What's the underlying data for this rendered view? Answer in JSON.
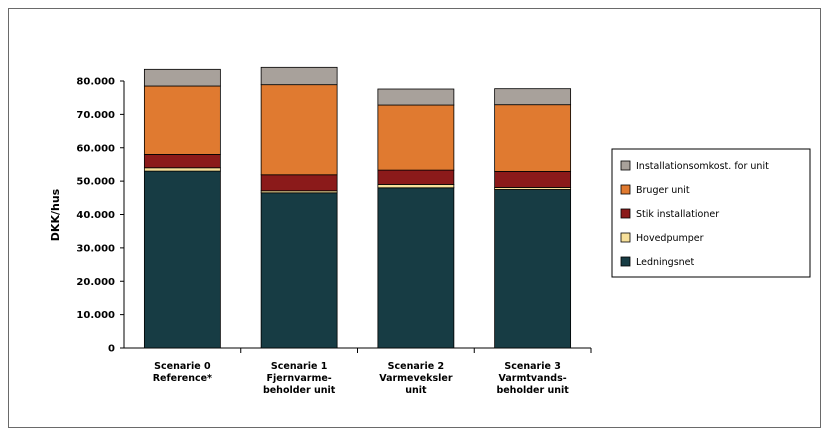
{
  "chart_data": {
    "type": "bar",
    "stacked": true,
    "ylabel": "DKK/hus",
    "ylim": [
      0,
      80000
    ],
    "yticks": [
      0,
      10000,
      20000,
      30000,
      40000,
      50000,
      60000,
      70000,
      80000
    ],
    "ytick_labels": [
      "0",
      "10.000",
      "20.000",
      "30.000",
      "40.000",
      "50.000",
      "60.000",
      "70.000",
      "80.000"
    ],
    "categories": [
      [
        "Scenarie 0",
        "Reference*"
      ],
      [
        "Scenarie 1",
        "Fjernvarme-",
        "beholder unit"
      ],
      [
        "Scenarie 2",
        "Varmeveksler",
        "unit"
      ],
      [
        "Scenarie 3",
        "Varmtvands-",
        "beholder unit"
      ]
    ],
    "series": [
      {
        "name": "Ledningsnet",
        "color": "#173c44",
        "values": [
          53000,
          46500,
          48000,
          47500
        ]
      },
      {
        "name": "Hovedpumper",
        "color": "#f7e09a",
        "values": [
          1000,
          600,
          1000,
          600
        ]
      },
      {
        "name": "Stik installationer",
        "color": "#8b1a1a",
        "values": [
          4000,
          4800,
          4300,
          4800
        ]
      },
      {
        "name": "Bruger unit",
        "color": "#e07a30",
        "values": [
          20500,
          27000,
          19500,
          20000
        ]
      },
      {
        "name": "Installationsomkost. for unit",
        "color": "#a8a19b",
        "values": [
          5000,
          5200,
          4800,
          4800
        ]
      }
    ],
    "legend_order": [
      "Installationsomkost. for unit",
      "Bruger unit",
      "Stik installationer",
      "Hovedpumper",
      "Ledningsnet"
    ],
    "legend_position": "right",
    "grid": false
  }
}
